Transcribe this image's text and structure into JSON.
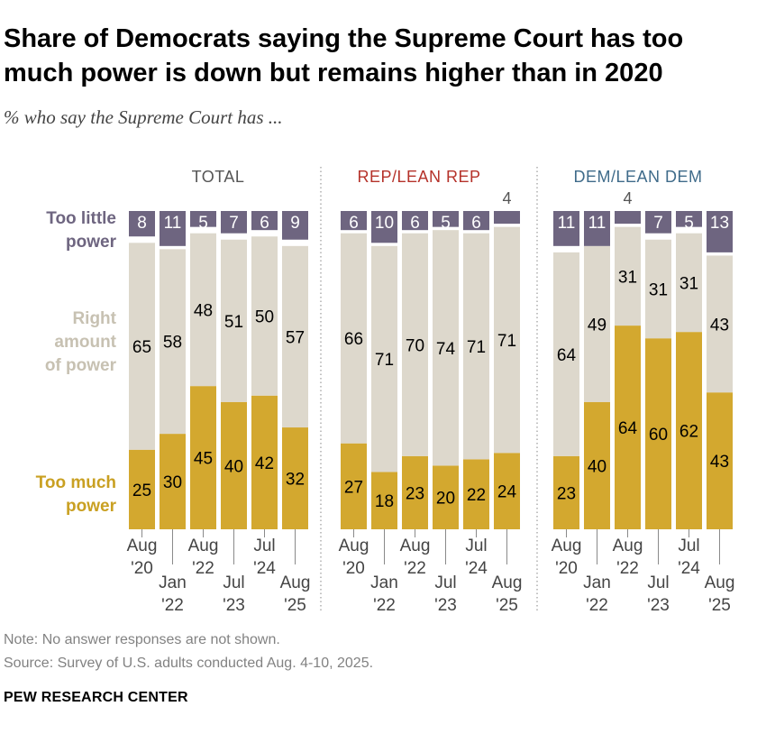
{
  "title": "Share of Democrats saying the Supreme Court has too much power is down but remains higher than in 2020",
  "subtitle": "% who say the Supreme Court has ...",
  "note": "Note: No answer responses are not shown.",
  "source": "Source: Survey of U.S. adults conducted Aug. 4-10, 2025.",
  "credit": "PEW RESEARCH CENTER",
  "colors": {
    "too_much": "#d3a82f",
    "right_amount": "#ddd8cc",
    "too_little": "#6e6580",
    "label_too_much": "#c9a022",
    "label_right_amount": "#c7c1b2",
    "label_too_little": "#6e6580",
    "panel_total": "#555555",
    "panel_rep": "#b5322a",
    "panel_dem": "#3f6b8a"
  },
  "row_labels": [
    {
      "key": "too_little",
      "lines": [
        "Too little",
        "power"
      ]
    },
    {
      "key": "right_amount",
      "lines": [
        "Right",
        "amount",
        "of power"
      ]
    },
    {
      "key": "too_much",
      "lines": [
        "Too much",
        "power"
      ]
    }
  ],
  "chart_data": {
    "type": "bar",
    "stacked": true,
    "categories": [
      [
        "Aug",
        "'20"
      ],
      [
        "Jan",
        "'22"
      ],
      [
        "Aug",
        "'22"
      ],
      [
        "Jul",
        "'23"
      ],
      [
        "Jul",
        "'24"
      ],
      [
        "Aug",
        "'25"
      ]
    ],
    "series_names": [
      "Too much power",
      "Right amount of power",
      "Too little power"
    ],
    "ylim": [
      0,
      100
    ],
    "panels": [
      {
        "name": "TOTAL",
        "too_much": [
          25,
          30,
          45,
          40,
          42,
          32
        ],
        "right_amount": [
          65,
          58,
          48,
          51,
          50,
          57
        ],
        "too_little": [
          8,
          11,
          5,
          7,
          6,
          9
        ]
      },
      {
        "name": "REP/LEAN REP",
        "too_much": [
          27,
          18,
          23,
          20,
          22,
          24
        ],
        "right_amount": [
          66,
          71,
          70,
          74,
          71,
          71
        ],
        "too_little": [
          6,
          10,
          6,
          5,
          6,
          4
        ]
      },
      {
        "name": "DEM/LEAN DEM",
        "too_much": [
          23,
          40,
          64,
          60,
          62,
          43
        ],
        "right_amount": [
          64,
          49,
          31,
          31,
          31,
          43
        ],
        "too_little": [
          11,
          11,
          4,
          7,
          5,
          13
        ]
      }
    ]
  }
}
